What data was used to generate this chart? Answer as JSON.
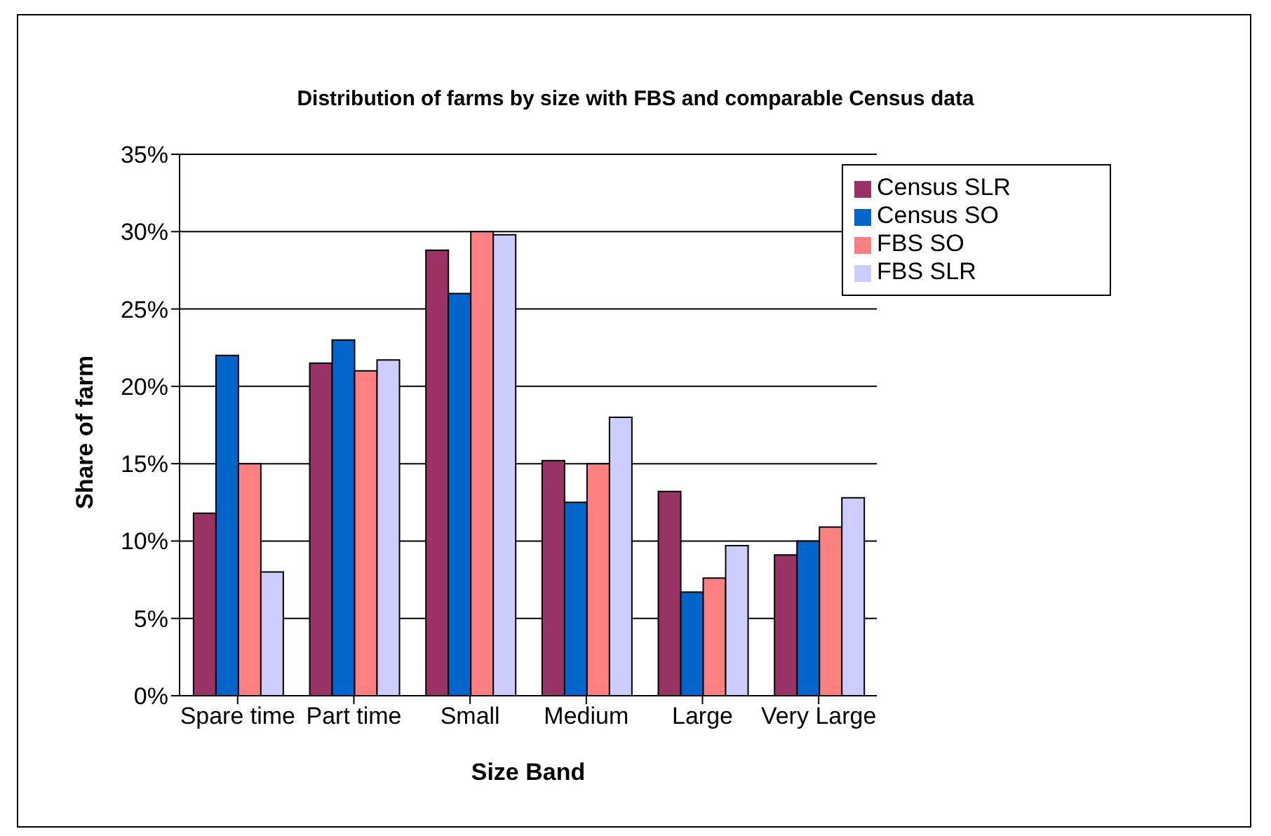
{
  "chart_data": {
    "type": "bar",
    "title": "Distribution of farms by size with FBS and comparable Census data",
    "xlabel": "Size Band",
    "ylabel": "Share of farm",
    "categories": [
      "Spare time",
      "Part time",
      "Small",
      "Medium",
      "Large",
      "Very Large"
    ],
    "series": [
      {
        "name": "Census SLR",
        "color": "#993366",
        "values": [
          11.8,
          21.5,
          28.8,
          15.2,
          13.2,
          9.1
        ]
      },
      {
        "name": "Census SO",
        "color": "#0066cc",
        "values": [
          22,
          23,
          26,
          12.5,
          6.7,
          10
        ]
      },
      {
        "name": "FBS SO",
        "color": "#ff8080",
        "values": [
          15,
          21,
          30,
          15,
          7.6,
          10.9
        ]
      },
      {
        "name": "FBS SLR",
        "color": "#ccccff",
        "values": [
          8,
          21.7,
          29.8,
          18,
          9.7,
          12.8
        ]
      }
    ],
    "ylim": [
      0,
      35
    ],
    "yticks": [
      {
        "value": 0,
        "label": "0%"
      },
      {
        "value": 5,
        "label": "5%"
      },
      {
        "value": 10,
        "label": "10%"
      },
      {
        "value": 15,
        "label": "15%"
      },
      {
        "value": 20,
        "label": "20%"
      },
      {
        "value": 25,
        "label": "25%"
      },
      {
        "value": 30,
        "label": "30%"
      },
      {
        "value": 35,
        "label": "35%"
      }
    ],
    "grid": "y",
    "legend": "top right"
  }
}
